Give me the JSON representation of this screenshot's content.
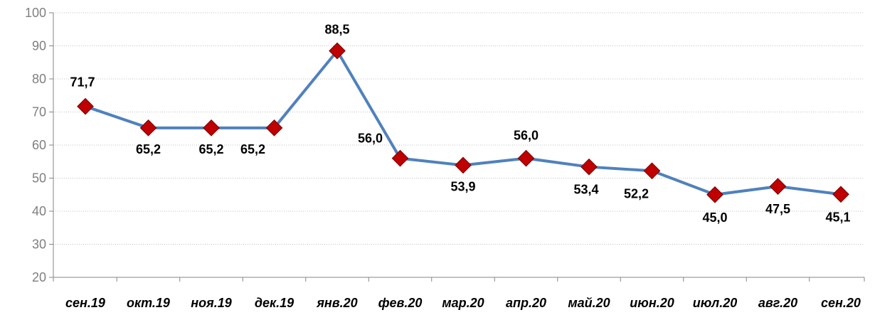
{
  "chart_data": {
    "type": "line",
    "title": "",
    "xlabel": "",
    "ylabel": "",
    "categories": [
      "сен.19",
      "окт.19",
      "ноя.19",
      "дек.19",
      "янв.20",
      "фев.20",
      "мар.20",
      "апр.20",
      "май.20",
      "июн.20",
      "июл.20",
      "авг.20",
      "сен.20"
    ],
    "series": [
      {
        "values": [
          71.7,
          65.2,
          65.2,
          65.2,
          88.5,
          56.0,
          53.9,
          56.0,
          53.4,
          52.2,
          45.0,
          47.5,
          45.1
        ],
        "data_labels": [
          "71,7",
          "65,2",
          "65,2",
          "65,2",
          "88,5",
          "56,0",
          "53,9",
          "56,0",
          "53,4",
          "52,2",
          "45,0",
          "47,5",
          "45,1"
        ]
      }
    ],
    "ylim": [
      20,
      100
    ],
    "yticks": [
      20,
      30,
      40,
      50,
      60,
      70,
      80,
      90,
      100
    ],
    "grid": true,
    "legend": "none",
    "colors": {
      "line": "#4f81bd",
      "marker_fill": "#c00000",
      "marker_stroke": "#7f0000",
      "grid": "#bfbfbf",
      "axis": "#868686",
      "ytick_text": "#7f7f7f",
      "xtick_text": "#000000",
      "label_text": "#000000"
    }
  }
}
